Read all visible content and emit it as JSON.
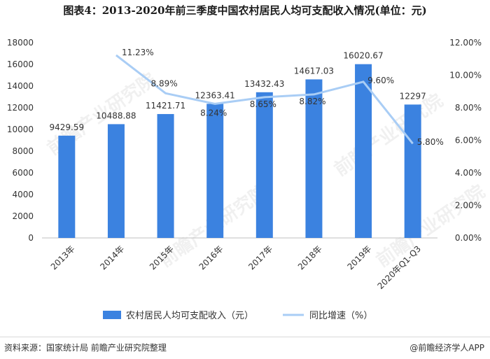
{
  "title": "图表4：2013-2020年前三季度中国农村居民人均可支配收入情况(单位：元)",
  "source": "资料来源：国家统计局 前瞻产业研究院整理",
  "brand": "@前瞻经济学人APP",
  "watermark": "前瞻产业研究院",
  "chart_data": {
    "type": "bar",
    "categories": [
      "2013年",
      "2014年",
      "2015年",
      "2016年",
      "2017年",
      "2018年",
      "2019年",
      "2020年Q1-Q3"
    ],
    "series": [
      {
        "name": "农村居民人均可支配收入（元）",
        "type": "bar",
        "axis": "left",
        "values": [
          9429.59,
          10488.88,
          11421.71,
          12363.41,
          13432.43,
          14617.03,
          16020.67,
          12297
        ],
        "labels": [
          "9429.59",
          "10488.88",
          "11421.71",
          "12363.41",
          "13432.43",
          "14617.03",
          "16020.67",
          "12297"
        ],
        "color": "#3b82e0"
      },
      {
        "name": "同比增速（%）",
        "type": "line",
        "axis": "right",
        "values": [
          null,
          11.23,
          8.89,
          8.24,
          8.65,
          8.82,
          9.6,
          5.8
        ],
        "labels": [
          "",
          "11.23%",
          "8.89%",
          "8.24%",
          "8.65%",
          "8.82%",
          "9.60%",
          "5.80%"
        ],
        "color": "#a9cdf5"
      }
    ],
    "y_left": {
      "min": 0,
      "max": 18000,
      "ticks": [
        "0",
        "2000",
        "4000",
        "6000",
        "8000",
        "10000",
        "12000",
        "14000",
        "16000",
        "18000"
      ]
    },
    "y_right": {
      "min": 0,
      "max": 12,
      "ticks": [
        "0.00%",
        "2.00%",
        "4.00%",
        "6.00%",
        "8.00%",
        "10.00%",
        "12.00%"
      ]
    },
    "grid": false,
    "legend_position": "bottom"
  }
}
